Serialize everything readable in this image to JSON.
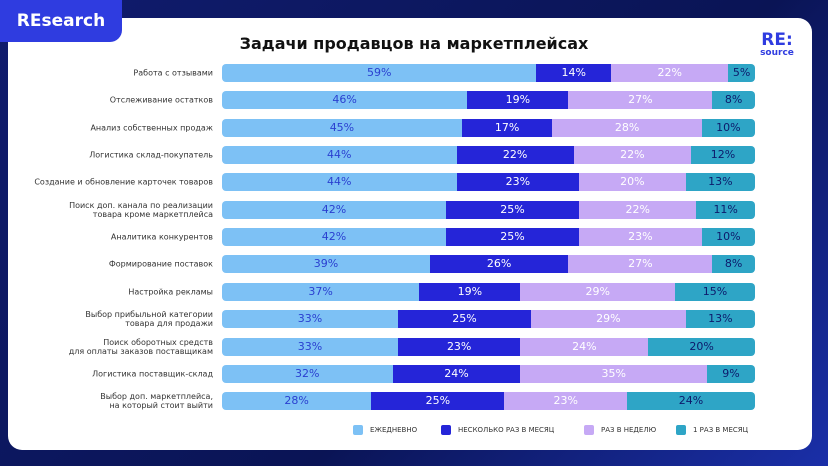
{
  "badge": "REsearch",
  "logo": {
    "top": "RE:",
    "bottom": "source"
  },
  "chart_data": {
    "type": "stacked-bar-horizontal",
    "title": "Задачи продавцов на маркетплейсах",
    "categories": [
      "Работа с отзывами",
      "Отслеживание остатков",
      "Анализ собственных продаж",
      "Логистика склад-покупатель",
      "Создание и обновление карточек товаров",
      "Поиск доп. канала по реализации\nтовара кроме маркетплейса",
      "Аналитика конкурентов",
      "Формирование поставок",
      "Настройка рекламы",
      "Выбор прибыльной категории\nтовара для продажи",
      "Поиск оборотных средств\nдля оплаты заказов поставщикам",
      "Логистика поставщик-склад",
      "Выбор доп. маркетплейса,\nна который стоит выйти"
    ],
    "series": [
      {
        "name": "ЕЖЕДНЕВНО",
        "color": "#7dc1f5",
        "values": [
          59,
          46,
          45,
          44,
          44,
          42,
          42,
          39,
          37,
          33,
          33,
          32,
          28
        ],
        "value_labels": [
          "59%",
          "46%",
          "45%",
          "44%",
          "44%",
          "42%",
          "42%",
          "39%",
          "37%",
          "33%",
          "33%",
          "32%",
          "28%"
        ]
      },
      {
        "name": "НЕСКОЛЬКО РАЗ В МЕСЯЦ",
        "color": "#2525d8",
        "values": [
          14,
          19,
          17,
          22,
          23,
          25,
          25,
          26,
          19,
          25,
          23,
          24,
          25
        ],
        "value_labels": [
          "14%",
          "19%",
          "17%",
          "22%",
          "23%",
          "25%",
          "25%",
          "26%",
          "19%",
          "25%",
          "23%",
          "24%",
          "25%"
        ]
      },
      {
        "name": "РАЗ В НЕДЕЛЮ",
        "color": "#c6a9f5",
        "values": [
          22,
          27,
          28,
          22,
          20,
          22,
          23,
          27,
          29,
          29,
          24,
          35,
          23
        ],
        "value_labels": [
          "22%",
          "27%",
          "28%",
          "22%",
          "20%",
          "22%",
          "23%",
          "27%",
          "29%",
          "29%",
          "24%",
          "35%",
          "23%"
        ]
      },
      {
        "name": "1 РАЗ В МЕСЯЦ",
        "color": "#2ea5c6",
        "values": [
          5,
          8,
          10,
          12,
          13,
          11,
          10,
          8,
          15,
          13,
          20,
          9,
          24
        ],
        "value_labels": [
          "5%",
          "8%",
          "10%",
          "12%",
          "13%",
          "11%",
          "10%",
          "8%",
          "15%",
          "13%",
          "20%",
          "9%",
          "24%"
        ]
      }
    ]
  }
}
